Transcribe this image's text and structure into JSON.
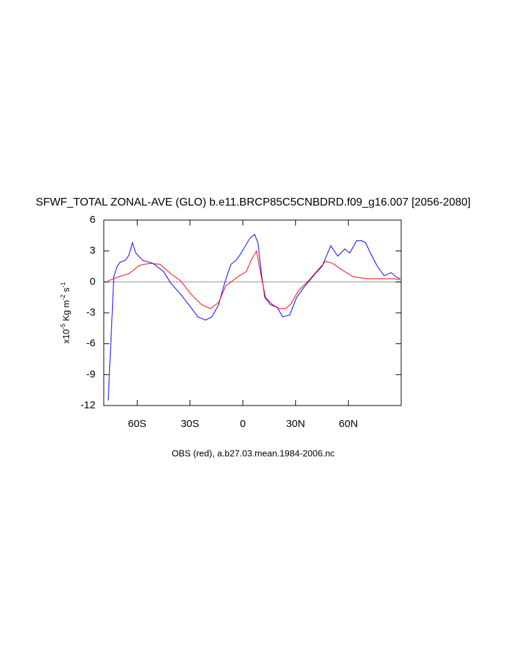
{
  "chart_data": {
    "type": "line",
    "title": "SFWF_TOTAL ZONAL-AVE (GLO) b.e11.BRCP85C5CNBDRD.f09_g16.007 [2056-2080]",
    "caption": "OBS (red), a.b27.03.mean.1984-2006.nc",
    "ylabel": [
      "x10",
      "-5",
      " Kg m",
      "-2",
      " s",
      "-1"
    ],
    "xlim": [
      -79,
      90
    ],
    "xticks": [
      {
        "value": -60,
        "label": "60S"
      },
      {
        "value": -30,
        "label": "30S"
      },
      0,
      {
        "value": 30,
        "label": "30N"
      },
      {
        "value": 60,
        "label": "60N"
      }
    ],
    "ylim": [
      -12,
      6
    ],
    "yticks": [
      6,
      3,
      0,
      -3,
      -6,
      -9,
      -12
    ],
    "hline": 0,
    "hline_color": "#999999",
    "series": [
      {
        "color": "#0000ff",
        "x": [
          -76.5,
          -74.5,
          -73.3,
          -71.4,
          -69.8,
          -66.7,
          -64.7,
          -62.7,
          -60.8,
          -56.9,
          -51,
          -45,
          -41,
          -35.3,
          -29.4,
          -25.5,
          -21.2,
          -17.6,
          -13.7,
          -11,
          -8.6,
          -6.7,
          -3.9,
          -2,
          3.9,
          6.7,
          8.6,
          10.6,
          12.5,
          15.7,
          19.6,
          22.7,
          26.7,
          30.6,
          35.3,
          41.2,
          45,
          50,
          54,
          58,
          60.8,
          64.7,
          67.5,
          69.8,
          72.5,
          76.5,
          80.4,
          84.3,
          87,
          89.4
        ],
        "values": [
          -11.5,
          -4.2,
          0.5,
          1.5,
          1.9,
          2.1,
          2.6,
          3.8,
          2.8,
          2.1,
          1.8,
          1.0,
          -0.1,
          -1.2,
          -2.5,
          -3.4,
          -3.7,
          -3.4,
          -2.2,
          -0.5,
          0.8,
          1.7,
          2.1,
          2.5,
          4.2,
          4.6,
          3.8,
          0.8,
          -1.5,
          -2.2,
          -2.5,
          -3.4,
          -3.2,
          -1.5,
          -0.4,
          0.8,
          1.5,
          3.5,
          2.5,
          3.2,
          2.8,
          4.0,
          4.0,
          3.8,
          2.8,
          1.5,
          0.6,
          0.9,
          0.5,
          0.3
        ]
      },
      {
        "color": "#ff0000",
        "x": [
          -76.5,
          -70.6,
          -64.7,
          -58.8,
          -52.9,
          -47,
          -41,
          -35.3,
          -29.4,
          -23.5,
          -18.4,
          -13.7,
          -9.8,
          -5.9,
          -2,
          2,
          4.7,
          7.8,
          10.2,
          12.9,
          16.9,
          20.8,
          24.3,
          27.5,
          31.4,
          37.3,
          42.4,
          47,
          51,
          56.9,
          62.7,
          70.6,
          78.4,
          86.3,
          89.4
        ],
        "values": [
          0.1,
          0.5,
          0.8,
          1.6,
          1.8,
          1.7,
          0.8,
          0.1,
          -1.2,
          -2.2,
          -2.6,
          -2.0,
          -0.4,
          0.1,
          0.6,
          1.0,
          2.1,
          3.0,
          0.8,
          -1.5,
          -2.2,
          -2.6,
          -2.6,
          -2.1,
          -0.9,
          0.1,
          1.1,
          2.0,
          1.8,
          1.1,
          0.5,
          0.3,
          0.3,
          0.3,
          0.2
        ]
      }
    ]
  }
}
